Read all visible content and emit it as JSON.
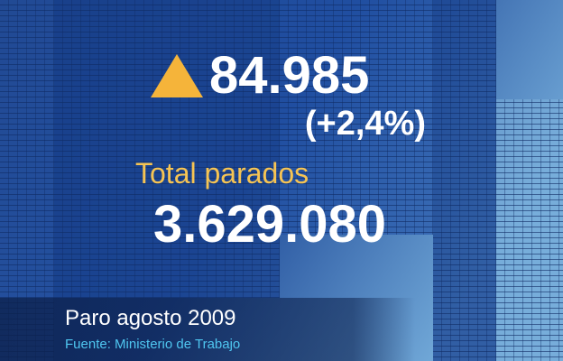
{
  "increase": "84.985",
  "change": "(+2,4%)",
  "total_label": "Total parados",
  "total_value": "3.629.080",
  "caption": "Paro agosto 2009",
  "source": "Fuente: Ministerio de Trabajo"
}
